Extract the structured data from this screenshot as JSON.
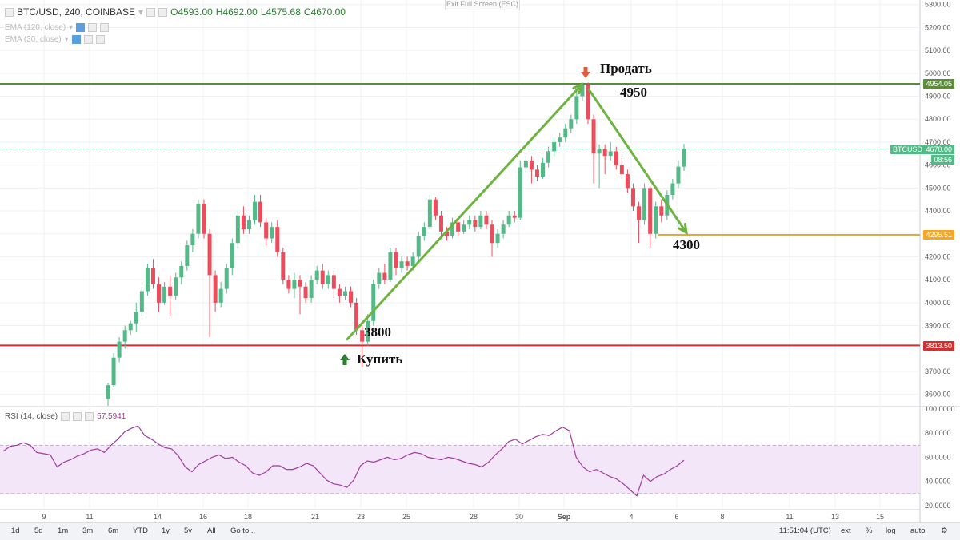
{
  "legend": {
    "symbol": "BTC/USD, 240, COINBASE",
    "open": "O4593.00",
    "high": "H4692.00",
    "low": "L4575.68",
    "close": "C4670.00"
  },
  "indicators": [
    {
      "label": "EMA (120, close)"
    },
    {
      "label": "EMA (30, close)"
    }
  ],
  "exit_fullscreen": "Exit Full Screen (ESC)",
  "rsi": {
    "label": "RSI (14, close)",
    "value": "57.5941"
  },
  "annotations": {
    "sell": "Продать",
    "buy": "Купить",
    "p4950": "4950",
    "p3800": "3800",
    "p4300": "4300"
  },
  "price_tags": {
    "top_line": "4954.05",
    "btcusd_label": "BTCUSD",
    "current": "4670.00",
    "countdown": "08:56",
    "orange_line": "4295.51",
    "red_line": "3813.50"
  },
  "toolbar": {
    "ranges": [
      "1d",
      "5d",
      "1m",
      "3m",
      "6m",
      "YTD",
      "1y",
      "5y",
      "All",
      "Go to..."
    ],
    "time": "11:51:04 (UTC)",
    "right": [
      "ext",
      "%",
      "log",
      "auto"
    ]
  },
  "colors": {
    "up": "#53b987",
    "down": "#eb4d5c",
    "trend": "#6db33f",
    "top_line": "#5b8c3a",
    "red_line": "#d32f2f",
    "orange_line": "#f5a623",
    "rsi": "#a03ca0",
    "rsi_band": "#f3e6f8"
  },
  "chart_data": {
    "type": "candlestick",
    "x_ticks": [
      "9",
      "11",
      "14",
      "16",
      "18",
      "21",
      "23",
      "25",
      "28",
      "30",
      "Sep",
      "4",
      "6",
      "8",
      "11",
      "13",
      "15"
    ],
    "y_ticks": [
      3600,
      3700,
      3800,
      3900,
      4000,
      4100,
      4200,
      4300,
      4400,
      4500,
      4600,
      4700,
      4800,
      4900,
      5000,
      5100,
      5200,
      5300
    ],
    "ylim": [
      3550,
      5320
    ],
    "horizontal_lines": [
      4954.05,
      4670.0,
      4295.51,
      3813.5
    ],
    "candles": [
      [
        3580,
        3640,
        3550,
        3650
      ],
      [
        3640,
        3760,
        3630,
        3780
      ],
      [
        3760,
        3830,
        3740,
        3850
      ],
      [
        3830,
        3880,
        3800,
        3900
      ],
      [
        3880,
        3910,
        3860,
        3920
      ],
      [
        3910,
        3960,
        3870,
        4000
      ],
      [
        3960,
        4050,
        3940,
        4070
      ],
      [
        4050,
        4150,
        4030,
        4170
      ],
      [
        4150,
        4080,
        4060,
        4190
      ],
      [
        4080,
        4000,
        3960,
        4110
      ],
      [
        4000,
        4070,
        3990,
        4090
      ],
      [
        4070,
        4030,
        3940,
        4120
      ],
      [
        4030,
        4110,
        4010,
        4130
      ],
      [
        4110,
        4160,
        4080,
        4180
      ],
      [
        4160,
        4250,
        4140,
        4270
      ],
      [
        4250,
        4300,
        4220,
        4320
      ],
      [
        4300,
        4430,
        4280,
        4450
      ],
      [
        4430,
        4300,
        4280,
        4450
      ],
      [
        4300,
        4120,
        3850,
        4320
      ],
      [
        4120,
        4000,
        3960,
        4140
      ],
      [
        4000,
        4060,
        3980,
        4090
      ],
      [
        4060,
        4150,
        4040,
        4170
      ],
      [
        4150,
        4260,
        4120,
        4280
      ],
      [
        4260,
        4380,
        4240,
        4400
      ],
      [
        4380,
        4320,
        4300,
        4420
      ],
      [
        4320,
        4360,
        4300,
        4380
      ],
      [
        4360,
        4440,
        4340,
        4470
      ],
      [
        4440,
        4350,
        4330,
        4470
      ],
      [
        4350,
        4280,
        4250,
        4370
      ],
      [
        4280,
        4330,
        4260,
        4350
      ],
      [
        4330,
        4220,
        4200,
        4360
      ],
      [
        4220,
        4100,
        4080,
        4240
      ],
      [
        4100,
        4060,
        4040,
        4120
      ],
      [
        4060,
        4100,
        4020,
        4130
      ],
      [
        4100,
        4070,
        3950,
        4120
      ],
      [
        4070,
        4020,
        4000,
        4090
      ],
      [
        4020,
        4100,
        4000,
        4120
      ],
      [
        4100,
        4140,
        4080,
        4160
      ],
      [
        4140,
        4080,
        4060,
        4170
      ],
      [
        4080,
        4120,
        4060,
        4140
      ],
      [
        4120,
        4060,
        4020,
        4140
      ],
      [
        4060,
        4030,
        4000,
        4080
      ],
      [
        4030,
        4050,
        4010,
        4070
      ],
      [
        4050,
        4000,
        3980,
        4070
      ],
      [
        4000,
        3880,
        3860,
        4020
      ],
      [
        3880,
        3830,
        3720,
        3900
      ],
      [
        3830,
        3920,
        3810,
        3950
      ],
      [
        3920,
        4080,
        3900,
        4100
      ],
      [
        4080,
        4130,
        4060,
        4150
      ],
      [
        4130,
        4100,
        4080,
        4170
      ],
      [
        4100,
        4220,
        4090,
        4240
      ],
      [
        4220,
        4150,
        4120,
        4240
      ],
      [
        4150,
        4180,
        4130,
        4200
      ],
      [
        4180,
        4160,
        4140,
        4200
      ],
      [
        4160,
        4200,
        4140,
        4220
      ],
      [
        4200,
        4290,
        4180,
        4310
      ],
      [
        4290,
        4330,
        4270,
        4350
      ],
      [
        4330,
        4450,
        4320,
        4470
      ],
      [
        4450,
        4380,
        4360,
        4460
      ],
      [
        4380,
        4310,
        4290,
        4400
      ],
      [
        4310,
        4290,
        4270,
        4330
      ],
      [
        4290,
        4350,
        4280,
        4370
      ],
      [
        4350,
        4310,
        4290,
        4370
      ],
      [
        4310,
        4340,
        4300,
        4360
      ],
      [
        4340,
        4360,
        4320,
        4380
      ],
      [
        4360,
        4330,
        4310,
        4380
      ],
      [
        4330,
        4380,
        4320,
        4400
      ],
      [
        4380,
        4340,
        4320,
        4400
      ],
      [
        4340,
        4260,
        4200,
        4360
      ],
      [
        4260,
        4300,
        4240,
        4320
      ],
      [
        4300,
        4340,
        4280,
        4360
      ],
      [
        4340,
        4380,
        4330,
        4400
      ],
      [
        4380,
        4370,
        4350,
        4400
      ],
      [
        4370,
        4590,
        4360,
        4620
      ],
      [
        4590,
        4620,
        4570,
        4640
      ],
      [
        4620,
        4580,
        4520,
        4640
      ],
      [
        4580,
        4550,
        4530,
        4600
      ],
      [
        4550,
        4610,
        4540,
        4630
      ],
      [
        4610,
        4660,
        4590,
        4680
      ],
      [
        4660,
        4700,
        4640,
        4720
      ],
      [
        4700,
        4720,
        4680,
        4740
      ],
      [
        4720,
        4760,
        4700,
        4780
      ],
      [
        4760,
        4800,
        4740,
        4820
      ],
      [
        4800,
        4900,
        4780,
        4920
      ],
      [
        4900,
        4950,
        4880,
        4960
      ],
      [
        4950,
        4800,
        4780,
        4960
      ],
      [
        4800,
        4650,
        4520,
        4820
      ],
      [
        4650,
        4670,
        4500,
        4690
      ],
      [
        4670,
        4640,
        4560,
        4690
      ],
      [
        4640,
        4660,
        4620,
        4700
      ],
      [
        4660,
        4600,
        4580,
        4680
      ],
      [
        4600,
        4560,
        4540,
        4630
      ],
      [
        4560,
        4500,
        4480,
        4580
      ],
      [
        4500,
        4420,
        4400,
        4520
      ],
      [
        4420,
        4360,
        4260,
        4440
      ],
      [
        4360,
        4500,
        4340,
        4520
      ],
      [
        4500,
        4300,
        4240,
        4510
      ],
      [
        4300,
        4420,
        4280,
        4440
      ],
      [
        4420,
        4380,
        4350,
        4450
      ],
      [
        4380,
        4470,
        4360,
        4490
      ],
      [
        4470,
        4520,
        4450,
        4540
      ],
      [
        4520,
        4593,
        4500,
        4620
      ],
      [
        4593,
        4670,
        4575,
        4692
      ]
    ],
    "rsi_ylim": [
      10,
      100
    ],
    "rsi_ticks": [
      20,
      40,
      60,
      80,
      100
    ],
    "rsi_band": [
      30,
      70
    ],
    "rsi_values": [
      65,
      69,
      70,
      72,
      70,
      64,
      63,
      62,
      52,
      56,
      58,
      61,
      63,
      66,
      67,
      64,
      70,
      75,
      81,
      84,
      86,
      78,
      75,
      71,
      68,
      67,
      61,
      52,
      48,
      54,
      57,
      60,
      62,
      59,
      60,
      56,
      53,
      47,
      45,
      48,
      53,
      53,
      50,
      50,
      52,
      55,
      53,
      47,
      41,
      38,
      37,
      35,
      41,
      53,
      57,
      56,
      58,
      60,
      58,
      59,
      62,
      64,
      63,
      60,
      59,
      58,
      60,
      59,
      57,
      55,
      54,
      52,
      56,
      62,
      67,
      73,
      75,
      71,
      74,
      77,
      79,
      78,
      82,
      85,
      82,
      60,
      52,
      48,
      50,
      47,
      44,
      42,
      38,
      33,
      28,
      45,
      40,
      44,
      46,
      50,
      53,
      57.59
    ]
  }
}
